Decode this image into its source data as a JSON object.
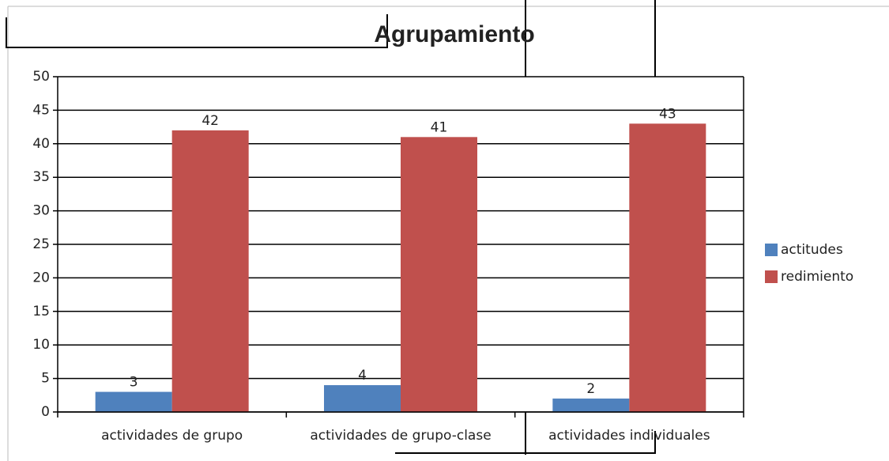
{
  "chart_data": {
    "type": "bar",
    "title": "Agrupamiento",
    "categories": [
      "actividades de grupo",
      "actividades de grupo-clase",
      "actividades individuales"
    ],
    "series": [
      {
        "name": "actitudes",
        "color": "#4f81bd",
        "values": [
          3,
          4,
          2
        ]
      },
      {
        "name": "redimiento",
        "color": "#c0504d",
        "values": [
          42,
          41,
          43
        ]
      }
    ],
    "ylim": [
      0,
      50
    ],
    "yticks": [
      0,
      5,
      10,
      15,
      20,
      25,
      30,
      35,
      40,
      45,
      50
    ],
    "grid": true,
    "legend": "right"
  }
}
